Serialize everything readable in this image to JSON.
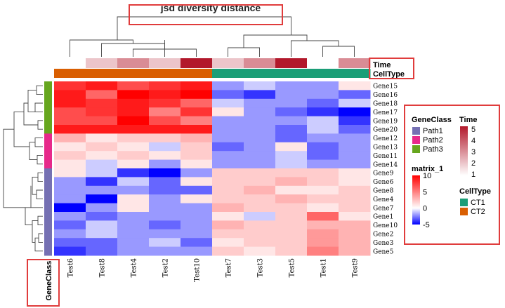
{
  "chart_data": {
    "type": "heatmap",
    "title": "jsd diversity distance",
    "columns": [
      "Test6",
      "Test8",
      "Test4",
      "Test2",
      "Test10",
      "Test7",
      "Test3",
      "Test5",
      "Test1",
      "Test9"
    ],
    "rows": [
      "Gene15",
      "Gene16",
      "Gene18",
      "Gene17",
      "Gene19",
      "Gene20",
      "Gene12",
      "Gene13",
      "Gene11",
      "Gene14",
      "Gene9",
      "Gene6",
      "Gene8",
      "Gene4",
      "Gene7",
      "Gene1",
      "Gene10",
      "Gene2",
      "Gene3",
      "Gene5"
    ],
    "values": [
      [
        8,
        9,
        7,
        8,
        9,
        -2,
        -1,
        -2,
        -2,
        1
      ],
      [
        9,
        6,
        10,
        9,
        10,
        -3,
        -4,
        -2,
        -2,
        -3
      ],
      [
        9,
        8,
        9,
        8,
        6,
        -1,
        -2,
        -2,
        -3,
        -1
      ],
      [
        7,
        8,
        9,
        5,
        8,
        1,
        -2,
        -3,
        -4,
        -5
      ],
      [
        7,
        7,
        10,
        7,
        5,
        -2,
        -2,
        -2,
        -1,
        -4
      ],
      [
        9,
        9,
        9,
        9,
        9,
        -2,
        -2,
        -3,
        -1,
        -3
      ],
      [
        3,
        1,
        2,
        2,
        3,
        -2,
        -2,
        -3,
        -2,
        -2
      ],
      [
        1,
        2,
        1,
        -1,
        2,
        -3,
        -2,
        1,
        -3,
        -2
      ],
      [
        2,
        1,
        2,
        1,
        2,
        -2,
        -2,
        -1,
        -3,
        -2
      ],
      [
        1,
        -1,
        1,
        -2,
        1,
        -2,
        -2,
        -1,
        -2,
        -2
      ],
      [
        1,
        -1,
        -4,
        -5,
        -2,
        2,
        2,
        2,
        2,
        1
      ],
      [
        -2,
        -4,
        -1,
        -3,
        1,
        2,
        2,
        3,
        2,
        1
      ],
      [
        -2,
        -2,
        -2,
        -3,
        -3,
        2,
        3,
        1,
        1,
        2
      ],
      [
        -2,
        -5,
        1,
        -2,
        1,
        2,
        2,
        3,
        2,
        2
      ],
      [
        -5,
        -2,
        1,
        -2,
        -2,
        3,
        2,
        2,
        1,
        2
      ],
      [
        -2,
        -3,
        -2,
        -2,
        -2,
        1,
        -1,
        2,
        6,
        1
      ],
      [
        -3,
        -1,
        -2,
        -3,
        -2,
        3,
        2,
        2,
        3,
        3
      ],
      [
        -2,
        -1,
        -2,
        -2,
        -2,
        2,
        2,
        2,
        4,
        3
      ],
      [
        -3,
        -3,
        -2,
        -1,
        -3,
        1,
        2,
        2,
        4,
        3
      ],
      [
        -4,
        -3,
        -2,
        -2,
        -2,
        2,
        1,
        2,
        5,
        3
      ]
    ],
    "color_scale": {
      "title": "matrix_1",
      "min": -5,
      "mid": 0,
      "max": 10,
      "low_color": "#0000ff",
      "mid_color": "#ffffff",
      "high_color": "#ff0000",
      "ticks": [
        "10",
        "5",
        "0",
        "-5"
      ]
    },
    "row_annotation": {
      "name": "GeneClass",
      "values": [
        "Path3",
        "Path3",
        "Path3",
        "Path3",
        "Path3",
        "Path3",
        "Path2",
        "Path2",
        "Path2",
        "Path2",
        "Path1",
        "Path1",
        "Path1",
        "Path1",
        "Path1",
        "Path1",
        "Path1",
        "Path1",
        "Path1",
        "Path1"
      ],
      "legend": [
        {
          "label": "Path1",
          "color": "#7570b3"
        },
        {
          "label": "Path2",
          "color": "#e7298a"
        },
        {
          "label": "Path3",
          "color": "#66a61e"
        }
      ]
    },
    "col_annotations": [
      {
        "name": "Time",
        "values": [
          1,
          2,
          3,
          2,
          5,
          2,
          3,
          5,
          1,
          3
        ],
        "legend_ticks": [
          "5",
          "4",
          "3",
          "2",
          "1"
        ],
        "low_color": "#ffffff",
        "high_color": "#b2182b"
      },
      {
        "name": "CellType",
        "values": [
          "CT2",
          "CT2",
          "CT2",
          "CT2",
          "CT2",
          "CT1",
          "CT1",
          "CT1",
          "CT1",
          "CT1"
        ],
        "legend": [
          {
            "label": "CT1",
            "color": "#1b9e77"
          },
          {
            "label": "CT2",
            "color": "#d95f02"
          }
        ]
      }
    ],
    "grid": false,
    "legend_placement": "right"
  }
}
